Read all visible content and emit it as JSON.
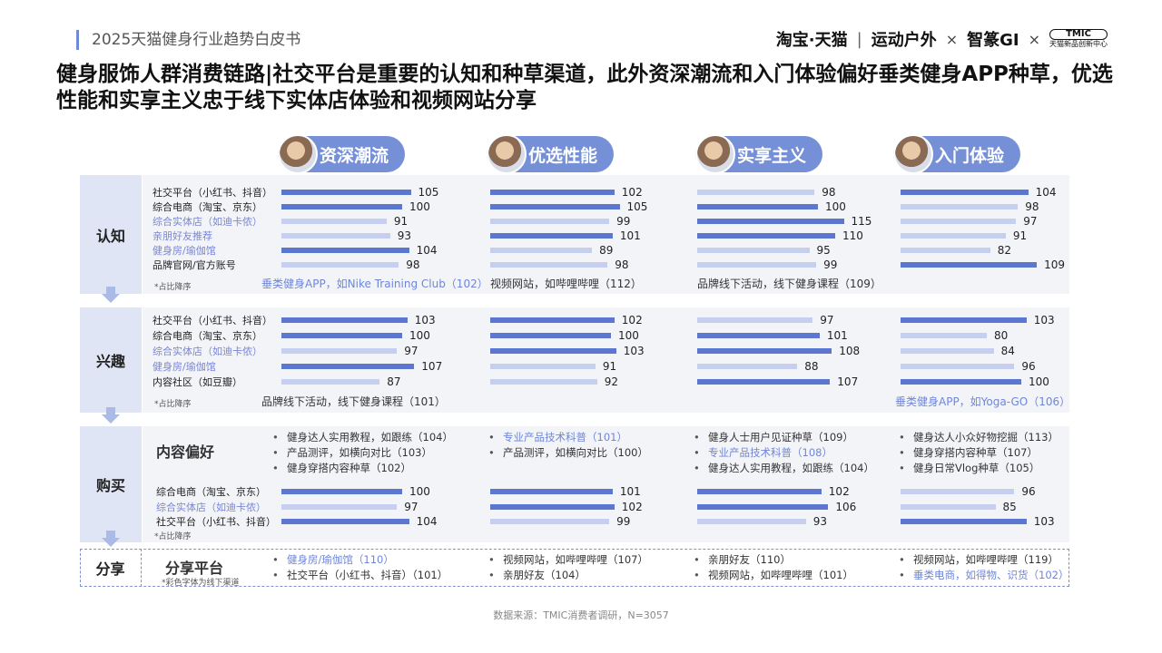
{
  "header": {
    "report_title": "2025天猫健身行业趋势白皮书",
    "logo1": "淘宝·天猫",
    "logo1_sub": "运动户外",
    "cross": "×",
    "logo2": "智篆GI",
    "logo3": "TMIC",
    "logo3_sub": "天猫新品创新中心"
  },
  "title": "健身服饰人群消费链路|社交平台是重要的认知和种草渠道，此外资深潮流和入门体验偏好垂类健身APP种草，优选性能和实享主义忠于线下实体店体验和视频网站分享",
  "personas": [
    "资深潮流",
    "优选性能",
    "实享主义",
    "入门体验"
  ],
  "stages": {
    "awareness": "认知",
    "interest": "兴趣",
    "purchase": "购买",
    "share": "分享"
  },
  "notes": {
    "rank": "*占比降序",
    "color_note": "*彩色字体为线下渠道"
  },
  "section_labels": {
    "content_pref": "内容偏好",
    "share_platform": "分享平台"
  },
  "colors": {
    "bar_dark": "#5b77cf",
    "bar_light": "#c7cff0",
    "offline_text": "#7a86d6",
    "persona_pill": "#7690d8"
  },
  "chart_data": [
    {
      "type": "bar",
      "stage": "认知",
      "categories": [
        "社交平台（小红书、抖音）",
        "综合电商（淘宝、京东）",
        "综合实体店（如迪卡侬）",
        "亲朋好友推荐",
        "健身房/瑜伽馆",
        "品牌官网/官方账号"
      ],
      "offline": [
        false,
        false,
        true,
        true,
        true,
        false
      ],
      "series": [
        {
          "name": "资深潮流",
          "values": [
            105,
            100,
            91,
            93,
            104,
            98
          ],
          "extra": "垂类健身APP，如Nike Training Club（102）",
          "extra_offline": true
        },
        {
          "name": "优选性能",
          "values": [
            102,
            105,
            99,
            101,
            89,
            98
          ],
          "extra": "视频网站，如哔哩哔哩（112）",
          "extra_offline": false
        },
        {
          "name": "实享主义",
          "values": [
            98,
            100,
            115,
            110,
            95,
            99
          ],
          "extra": "品牌线下活动，线下健身课程（109）",
          "extra_offline": false
        },
        {
          "name": "入门体验",
          "values": [
            104,
            98,
            97,
            91,
            82,
            109
          ],
          "extra": "",
          "extra_offline": false
        }
      ]
    },
    {
      "type": "bar",
      "stage": "兴趣",
      "categories": [
        "社交平台（小红书、抖音）",
        "综合电商（淘宝、京东）",
        "综合实体店（如迪卡侬）",
        "健身房/瑜伽馆",
        "内容社区（如豆瓣）"
      ],
      "offline": [
        false,
        false,
        true,
        true,
        false
      ],
      "series": [
        {
          "name": "资深潮流",
          "values": [
            103,
            100,
            97,
            107,
            87
          ],
          "extra": "品牌线下活动，线下健身课程（101）",
          "extra_offline": false
        },
        {
          "name": "优选性能",
          "values": [
            102,
            100,
            103,
            91,
            92
          ],
          "extra": "",
          "extra_offline": false
        },
        {
          "name": "实享主义",
          "values": [
            97,
            101,
            108,
            88,
            107
          ],
          "extra": "",
          "extra_offline": false
        },
        {
          "name": "入门体验",
          "values": [
            103,
            80,
            84,
            96,
            100
          ],
          "extra": "垂类健身APP，如Yoga-GO（106）",
          "extra_offline": true
        }
      ]
    },
    {
      "type": "bar",
      "stage": "购买",
      "categories": [
        "综合电商（淘宝、京东）",
        "综合实体店（如迪卡侬）",
        "社交平台（小红书、抖音）"
      ],
      "offline": [
        false,
        true,
        false
      ],
      "series": [
        {
          "name": "资深潮流",
          "values": [
            100,
            97,
            104
          ]
        },
        {
          "name": "优选性能",
          "values": [
            101,
            102,
            99
          ]
        },
        {
          "name": "实享主义",
          "values": [
            102,
            106,
            93
          ]
        },
        {
          "name": "入门体验",
          "values": [
            96,
            85,
            103
          ]
        }
      ]
    }
  ],
  "content_preferences": [
    [
      {
        "text": "健身达人实用教程，如跟练（104）",
        "offline": false
      },
      {
        "text": "产品测评，如横向对比（103）",
        "offline": false
      },
      {
        "text": "健身穿搭内容种草（102）",
        "offline": false
      }
    ],
    [
      {
        "text": "专业产品技术科普（101）",
        "offline": true
      },
      {
        "text": "产品测评，如横向对比（100）",
        "offline": false
      }
    ],
    [
      {
        "text": "健身人士用户见证种草（109）",
        "offline": false
      },
      {
        "text": "专业产品技术科普（108）",
        "offline": true
      },
      {
        "text": "健身达人实用教程，如跟练（104）",
        "offline": false
      }
    ],
    [
      {
        "text": "健身达人小众好物挖掘（113）",
        "offline": false
      },
      {
        "text": "健身穿搭内容种草（107）",
        "offline": false
      },
      {
        "text": "健身日常Vlog种草（105）",
        "offline": false
      }
    ]
  ],
  "share_platforms": [
    [
      {
        "text": "健身房/瑜伽馆（110）",
        "offline": true
      },
      {
        "text": "社交平台（小红书、抖音）（101）",
        "offline": false
      }
    ],
    [
      {
        "text": "视频网站，如哔哩哔哩（107）",
        "offline": false
      },
      {
        "text": "亲朋好友（104）",
        "offline": false
      }
    ],
    [
      {
        "text": "亲朋好友（110）",
        "offline": false
      },
      {
        "text": "视频网站，如哔哩哔哩（101）",
        "offline": false
      }
    ],
    [
      {
        "text": "视频网站，如哔哩哔哩（119）",
        "offline": false
      },
      {
        "text": "垂类电商，如得物、识货（102）",
        "offline": true
      }
    ]
  ],
  "source": "数据来源：TMIC消费者调研，N=3057"
}
